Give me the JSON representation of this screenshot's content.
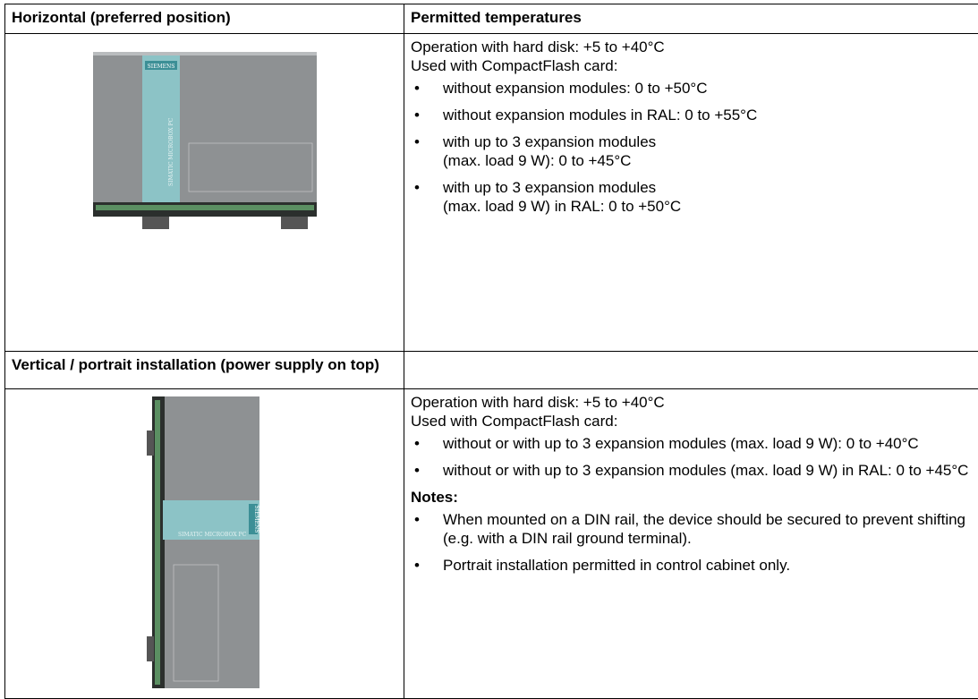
{
  "table": {
    "header": [
      "Horizontal (preferred position)",
      "Permitted temperatures"
    ],
    "horizontal": {
      "image": {
        "brand": "SIEMENS",
        "product": "SIMATIC MICROBOX PC"
      },
      "lines": [
        "Operation with hard disk: +5 to +40°C",
        "Used with CompactFlash card:"
      ],
      "bullets": [
        "without expansion modules: 0 to +50°C",
        "without expansion modules in RAL: 0 to +55°C",
        "with up to 3 expansion modules\n(max. load 9 W): 0 to +45°C",
        "with up to 3 expansion modules\n(max. load 9 W) in RAL: 0 to +50°C"
      ]
    },
    "vertical_header": "Vertical / portrait installation (power supply on top)",
    "vertical": {
      "image": {
        "brand": "SIEMENS",
        "product": "SIMATIC MICROBOX PC"
      },
      "lines": [
        "Operation with hard disk: +5 to +40°C",
        "Used with CompactFlash card:"
      ],
      "bullets": [
        "without or with up to 3 expansion modules (max. load 9 W): 0 to +40°C",
        "without or with up to 3 expansion modules (max. load 9 W) in RAL: 0 to +45°C"
      ],
      "notes_title": "Notes:",
      "notes": [
        "When mounted on a DIN rail, the device should be secured to prevent shifting (e.g. with a DIN rail ground terminal).",
        "Portrait installation permitted in control cabinet only."
      ]
    }
  }
}
